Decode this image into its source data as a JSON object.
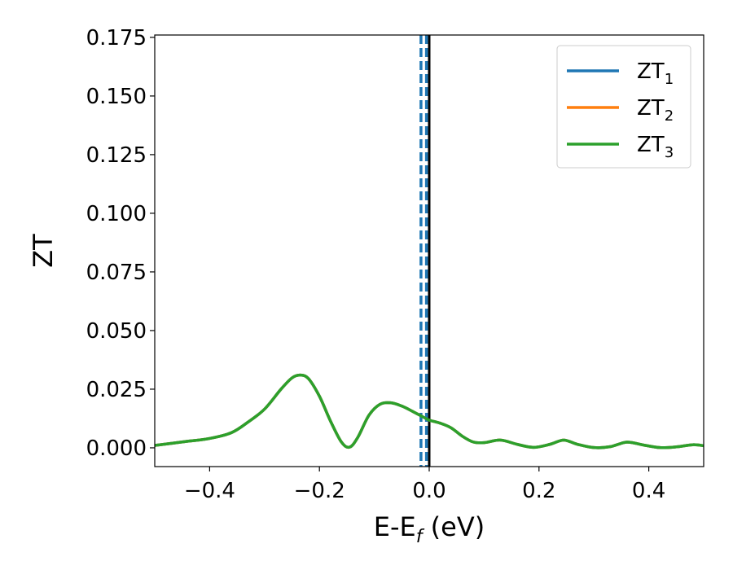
{
  "chart_data": {
    "type": "line",
    "title": "",
    "xlabel_main": "E-E",
    "xlabel_sub": "f",
    "xlabel_rest": " (eV)",
    "ylabel": "ZT",
    "xlim": [
      -0.5,
      0.5
    ],
    "ylim": [
      -0.008,
      0.176
    ],
    "grid": false,
    "legend_position": "top-right",
    "x_ticks": [
      -0.4,
      -0.2,
      0.0,
      0.2,
      0.4
    ],
    "x_tick_labels": [
      "−0.4",
      "−0.2",
      "0.0",
      "0.2",
      "0.4"
    ],
    "y_ticks": [
      0.0,
      0.025,
      0.05,
      0.075,
      0.1,
      0.125,
      0.15,
      0.175
    ],
    "y_tick_labels": [
      "0.000",
      "0.025",
      "0.050",
      "0.075",
      "0.100",
      "0.125",
      "0.150",
      "0.175"
    ],
    "series": [
      {
        "name_main": "ZT",
        "name_sub": "1",
        "color": "#1f77b4",
        "x": [
          -0.5,
          -0.45,
          -0.4,
          -0.36,
          -0.33,
          -0.3,
          -0.27,
          -0.25,
          -0.235,
          -0.22,
          -0.2,
          -0.18,
          -0.16,
          -0.145,
          -0.13,
          -0.11,
          -0.09,
          -0.07,
          -0.05,
          -0.03,
          -0.01,
          0.0,
          0.02,
          0.04,
          0.06,
          0.08,
          0.1,
          0.13,
          0.16,
          0.19,
          0.22,
          0.245,
          0.27,
          0.3,
          0.33,
          0.36,
          0.39,
          0.42,
          0.45,
          0.48,
          0.5
        ],
        "y": [
          0.001,
          0.0025,
          0.004,
          0.0065,
          0.011,
          0.0165,
          0.025,
          0.0298,
          0.031,
          0.0295,
          0.022,
          0.0115,
          0.0025,
          0.0003,
          0.0045,
          0.0138,
          0.0185,
          0.0192,
          0.0178,
          0.0155,
          0.013,
          0.0118,
          0.0105,
          0.0085,
          0.005,
          0.0025,
          0.0022,
          0.0033,
          0.0015,
          0.0002,
          0.0015,
          0.0033,
          0.0015,
          0.0001,
          0.0005,
          0.0024,
          0.0012,
          0.0001,
          0.0004,
          0.0013,
          0.0009
        ]
      },
      {
        "name_main": "ZT",
        "name_sub": "2",
        "color": "#ff7f0e",
        "x": [
          -0.5,
          -0.45,
          -0.4,
          -0.36,
          -0.33,
          -0.3,
          -0.27,
          -0.25,
          -0.235,
          -0.22,
          -0.2,
          -0.18,
          -0.16,
          -0.145,
          -0.13,
          -0.11,
          -0.09,
          -0.07,
          -0.05,
          -0.03,
          -0.01,
          0.0,
          0.02,
          0.04,
          0.06,
          0.08,
          0.1,
          0.13,
          0.16,
          0.19,
          0.22,
          0.245,
          0.27,
          0.3,
          0.33,
          0.36,
          0.39,
          0.42,
          0.45,
          0.48,
          0.5
        ],
        "y": [
          0.001,
          0.0025,
          0.004,
          0.0065,
          0.011,
          0.0165,
          0.025,
          0.0298,
          0.031,
          0.0295,
          0.022,
          0.0115,
          0.0025,
          0.0003,
          0.0045,
          0.0138,
          0.0185,
          0.0192,
          0.0178,
          0.0155,
          0.013,
          0.0118,
          0.0105,
          0.0085,
          0.005,
          0.0025,
          0.0022,
          0.0033,
          0.0015,
          0.0002,
          0.0015,
          0.0033,
          0.0015,
          0.0001,
          0.0005,
          0.0024,
          0.0012,
          0.0001,
          0.0004,
          0.0013,
          0.0009
        ]
      },
      {
        "name_main": "ZT",
        "name_sub": "3",
        "color": "#2ca02c",
        "x": [
          -0.5,
          -0.45,
          -0.4,
          -0.36,
          -0.33,
          -0.3,
          -0.27,
          -0.25,
          -0.235,
          -0.22,
          -0.2,
          -0.18,
          -0.16,
          -0.145,
          -0.13,
          -0.11,
          -0.09,
          -0.07,
          -0.05,
          -0.03,
          -0.01,
          0.0,
          0.02,
          0.04,
          0.06,
          0.08,
          0.1,
          0.13,
          0.16,
          0.19,
          0.22,
          0.245,
          0.27,
          0.3,
          0.33,
          0.36,
          0.39,
          0.42,
          0.45,
          0.48,
          0.5
        ],
        "y": [
          0.001,
          0.0025,
          0.004,
          0.0065,
          0.011,
          0.0165,
          0.025,
          0.0298,
          0.031,
          0.0295,
          0.022,
          0.0115,
          0.0025,
          0.0003,
          0.0045,
          0.0138,
          0.0185,
          0.0192,
          0.0178,
          0.0155,
          0.013,
          0.0118,
          0.0105,
          0.0085,
          0.005,
          0.0025,
          0.0022,
          0.0033,
          0.0015,
          0.0002,
          0.0015,
          0.0033,
          0.0015,
          0.0001,
          0.0005,
          0.0024,
          0.0012,
          0.0001,
          0.0004,
          0.0013,
          0.0009
        ]
      }
    ],
    "vertical_lines": [
      {
        "x": 0.0,
        "color": "#000000",
        "style": "solid"
      },
      {
        "x": -0.015,
        "color": "#1f77b4",
        "style": "dashed"
      },
      {
        "x": -0.005,
        "color": "#1f77b4",
        "style": "dashed"
      }
    ]
  }
}
